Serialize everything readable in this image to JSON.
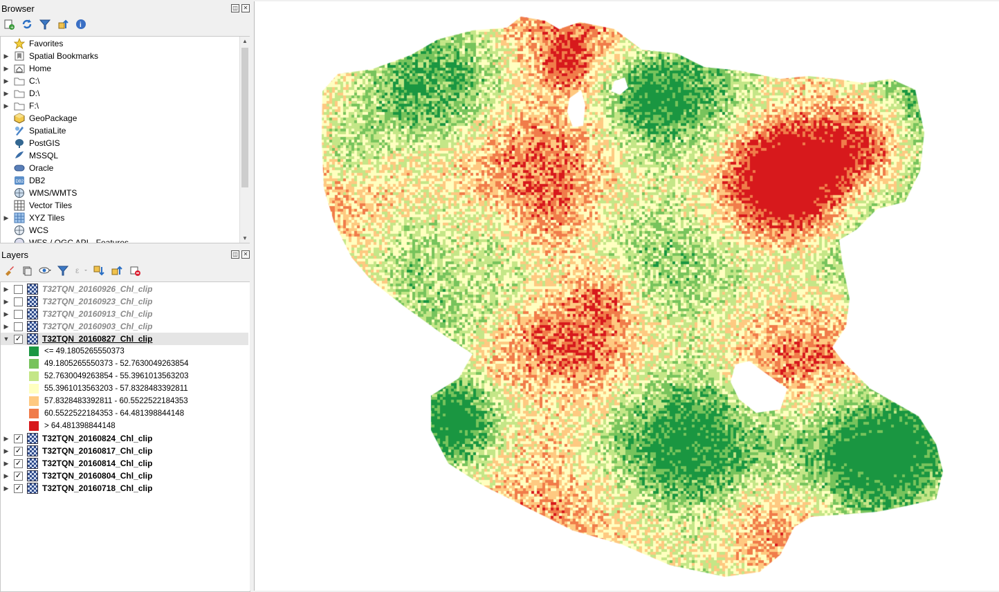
{
  "browser": {
    "title": "Browser",
    "items": [
      {
        "label": "Favorites",
        "icon": "star-icon",
        "expandable": false
      },
      {
        "label": "Spatial Bookmarks",
        "icon": "bookmark-icon",
        "expandable": true
      },
      {
        "label": "Home",
        "icon": "home-folder-icon",
        "expandable": true
      },
      {
        "label": "C:\\",
        "icon": "folder-icon",
        "expandable": true
      },
      {
        "label": "D:\\",
        "icon": "folder-icon",
        "expandable": true
      },
      {
        "label": "F:\\",
        "icon": "folder-icon",
        "expandable": true
      },
      {
        "label": "GeoPackage",
        "icon": "geopackage-icon",
        "expandable": false
      },
      {
        "label": "SpatiaLite",
        "icon": "spatialite-icon",
        "expandable": false
      },
      {
        "label": "PostGIS",
        "icon": "postgis-icon",
        "expandable": false
      },
      {
        "label": "MSSQL",
        "icon": "mssql-icon",
        "expandable": false
      },
      {
        "label": "Oracle",
        "icon": "oracle-icon",
        "expandable": false
      },
      {
        "label": "DB2",
        "icon": "db2-icon",
        "expandable": false
      },
      {
        "label": "WMS/WMTS",
        "icon": "wms-icon",
        "expandable": false
      },
      {
        "label": "Vector Tiles",
        "icon": "vector-tiles-icon",
        "expandable": false
      },
      {
        "label": "XYZ Tiles",
        "icon": "xyz-tiles-icon",
        "expandable": true
      },
      {
        "label": "WCS",
        "icon": "wcs-icon",
        "expandable": false
      },
      {
        "label": "WFS / OGC API - Features",
        "icon": "wfs-icon",
        "expandable": false
      }
    ]
  },
  "layers": {
    "title": "Layers",
    "list": [
      {
        "name": "T32TQN_20160926_Chl_clip",
        "checked": false,
        "expanded": false
      },
      {
        "name": "T32TQN_20160923_Chl_clip",
        "checked": false,
        "expanded": false
      },
      {
        "name": "T32TQN_20160913_Chl_clip",
        "checked": false,
        "expanded": false
      },
      {
        "name": "T32TQN_20160903_Chl_clip",
        "checked": false,
        "expanded": false
      },
      {
        "name": "T32TQN_20160827_Chl_clip",
        "checked": true,
        "expanded": true,
        "current": true
      }
    ],
    "legend": [
      {
        "label": "<= 49.1805265550373",
        "color": "#1a9641"
      },
      {
        "label": "49.1805265550373 - 52.7630049263854",
        "color": "#77c35c"
      },
      {
        "label": "52.7630049263854 - 55.3961013563203",
        "color": "#c4e687"
      },
      {
        "label": "55.3961013563203 - 57.8328483392811",
        "color": "#ffffc0"
      },
      {
        "label": "57.8328483392811 - 60.5522522184353",
        "color": "#fec981"
      },
      {
        "label": "60.5522522184353 - 64.481398844148",
        "color": "#f07c4a"
      },
      {
        "label": "> 64.481398844148",
        "color": "#d7191c"
      }
    ],
    "list_after": [
      {
        "name": "T32TQN_20160824_Chl_clip",
        "checked": true,
        "expanded": false
      },
      {
        "name": "T32TQN_20160817_Chl_clip",
        "checked": true,
        "expanded": false
      },
      {
        "name": "T32TQN_20160814_Chl_clip",
        "checked": true,
        "expanded": false
      },
      {
        "name": "T32TQN_20160804_Chl_clip",
        "checked": true,
        "expanded": false
      },
      {
        "name": "T32TQN_20160718_Chl_clip",
        "checked": true,
        "expanded": false
      }
    ]
  },
  "palette": {
    "green_dark": "#1a9641",
    "green_mid": "#77c35c",
    "green_light": "#c4e687",
    "yellow": "#ffffc0",
    "orange_light": "#fec981",
    "orange": "#f07c4a",
    "red": "#d7191c"
  }
}
